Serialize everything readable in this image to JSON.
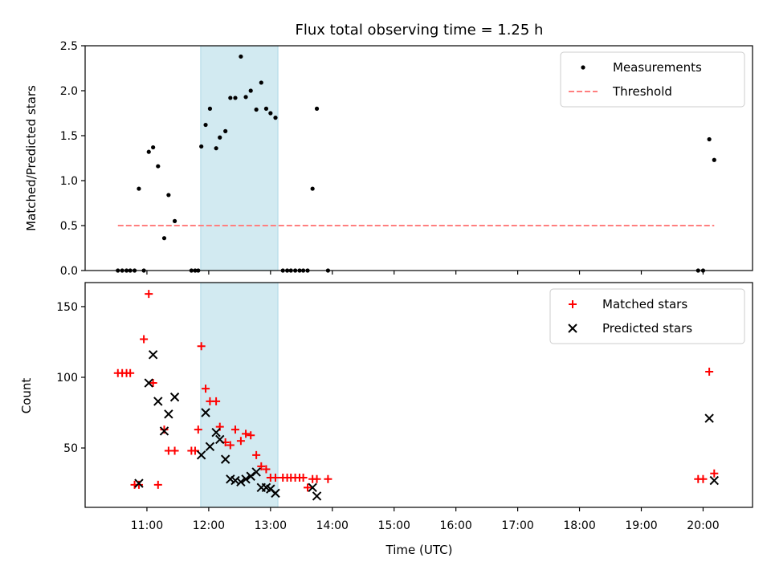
{
  "chart_data": [
    {
      "type": "scatter",
      "title": "Flux total observing time = 1.25 h",
      "xlabel": "",
      "ylabel": "Matched/Predicted stars",
      "x_unit": "hours (UTC)",
      "xlim": [
        10.0,
        20.8
      ],
      "ylim": [
        0,
        2.5
      ],
      "yticks": [
        0.0,
        0.5,
        1.0,
        1.5,
        2.0,
        2.5
      ],
      "ytick_labels": [
        "0.0",
        "0.5",
        "1.0",
        "1.5",
        "2.0",
        "2.5"
      ],
      "grid": false,
      "legend": "top-right",
      "highlight_span": [
        11.87,
        13.12
      ],
      "highlight_color": "#add8e6",
      "series": [
        {
          "name": "Measurements",
          "kind": "points",
          "color": "#000000",
          "x": [
            10.53,
            10.6,
            10.67,
            10.73,
            10.8,
            10.87,
            10.95,
            11.03,
            11.1,
            11.18,
            11.28,
            11.35,
            11.45,
            11.72,
            11.78,
            11.83,
            11.88,
            11.95,
            12.02,
            12.12,
            12.18,
            12.27,
            12.35,
            12.43,
            12.52,
            12.6,
            12.68,
            12.77,
            12.85,
            12.93,
            13.0,
            13.08,
            13.2,
            13.27,
            13.33,
            13.4,
            13.47,
            13.53,
            13.6,
            13.68,
            13.75,
            13.93,
            19.92,
            20.0,
            20.1,
            20.18
          ],
          "y": [
            0,
            0,
            0,
            0,
            0,
            0.91,
            0,
            1.32,
            1.37,
            1.16,
            0.36,
            0.84,
            0.55,
            0,
            0,
            0,
            1.38,
            1.62,
            1.8,
            1.36,
            1.48,
            1.55,
            1.92,
            1.92,
            2.38,
            1.93,
            2.0,
            1.79,
            2.09,
            1.8,
            1.75,
            1.7,
            0,
            0,
            0,
            0,
            0,
            0,
            0,
            0.91,
            1.8,
            0,
            0,
            0,
            1.46,
            1.23
          ]
        },
        {
          "name": "Threshold",
          "kind": "dashed-line",
          "color": "#ff7f7f",
          "x": [
            10.53,
            20.18
          ],
          "y": [
            0.5,
            0.5
          ]
        }
      ]
    },
    {
      "type": "scatter",
      "title": "",
      "xlabel": "Time (UTC)",
      "ylabel": "Count",
      "x_unit": "hours (UTC)",
      "xlim": [
        10.0,
        20.8
      ],
      "ylim": [
        8,
        167
      ],
      "yticks": [
        50,
        100,
        150
      ],
      "ytick_labels": [
        "50",
        "100",
        "150"
      ],
      "xticks": [
        11,
        12,
        13,
        14,
        15,
        16,
        17,
        18,
        19,
        20
      ],
      "xtick_labels": [
        "11:00",
        "12:00",
        "13:00",
        "14:00",
        "15:00",
        "16:00",
        "17:00",
        "18:00",
        "19:00",
        "20:00"
      ],
      "grid": false,
      "legend": "top-right",
      "highlight_span": [
        11.87,
        13.12
      ],
      "highlight_color": "#add8e6",
      "series": [
        {
          "name": "Matched stars",
          "kind": "plus",
          "color": "#ff0000",
          "x": [
            10.53,
            10.6,
            10.67,
            10.73,
            10.8,
            10.87,
            10.95,
            11.03,
            11.1,
            11.18,
            11.28,
            11.35,
            11.45,
            11.72,
            11.78,
            11.83,
            11.88,
            11.95,
            12.02,
            12.12,
            12.18,
            12.27,
            12.35,
            12.43,
            12.52,
            12.6,
            12.68,
            12.77,
            12.85,
            12.93,
            13.0,
            13.08,
            13.2,
            13.27,
            13.33,
            13.4,
            13.47,
            13.53,
            13.6,
            13.68,
            13.75,
            13.93,
            19.92,
            20.0,
            20.1,
            20.18
          ],
          "y": [
            103,
            103,
            103,
            103,
            24,
            24,
            127,
            159,
            96,
            24,
            63,
            48,
            48,
            48,
            48,
            63,
            122,
            92,
            83,
            83,
            65,
            54,
            52,
            63,
            55,
            60,
            59,
            45,
            37,
            35,
            29,
            29,
            29,
            29,
            29,
            29,
            29,
            29,
            22,
            28,
            28,
            28,
            28,
            28,
            104,
            32
          ]
        },
        {
          "name": "Predicted stars",
          "kind": "x",
          "color": "#000000",
          "x": [
            10.87,
            11.03,
            11.1,
            11.18,
            11.28,
            11.35,
            11.45,
            11.88,
            11.95,
            12.02,
            12.12,
            12.18,
            12.27,
            12.35,
            12.43,
            12.52,
            12.6,
            12.68,
            12.77,
            12.85,
            12.93,
            13.0,
            13.08,
            13.68,
            13.75,
            20.1,
            20.18
          ],
          "y": [
            25,
            96,
            116,
            83,
            62,
            74,
            86,
            45,
            75,
            51,
            61,
            56,
            42,
            28,
            27,
            26,
            28,
            30,
            33,
            22,
            22,
            21,
            18,
            22,
            16,
            71,
            27
          ]
        }
      ]
    }
  ]
}
